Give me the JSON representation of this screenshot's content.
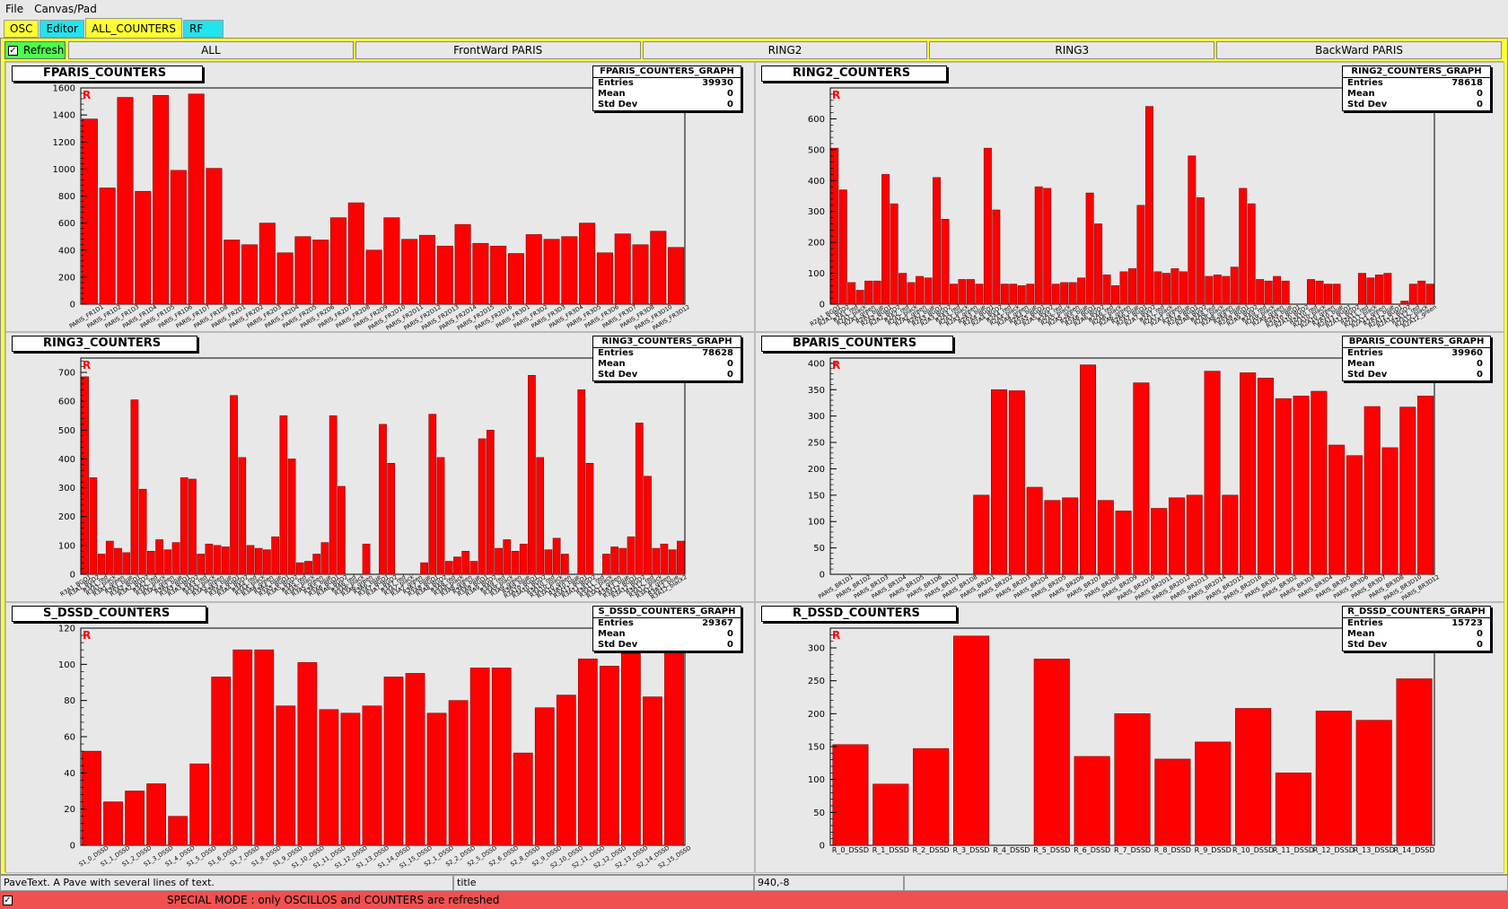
{
  "menubar": {
    "items": [
      "File",
      "Canvas/Pad"
    ]
  },
  "top_tabs": [
    {
      "label": "OSC",
      "style": "yellow"
    },
    {
      "label": "Editor",
      "style": "cyan"
    },
    {
      "label": "ALL_COUNTERS",
      "style": "active"
    },
    {
      "label": "RF",
      "style": "cyan"
    }
  ],
  "toolbar": {
    "refresh_label": "Refresh",
    "refresh_checked": "✓",
    "sub_tabs": [
      "ALL",
      "FrontWard PARIS",
      "RING2",
      "RING3",
      "BackWard PARIS"
    ]
  },
  "stat_labels": {
    "entries": "Entries",
    "mean": "Mean",
    "std": "Std Dev"
  },
  "marker": "R",
  "charts": [
    {
      "title": "FPARIS_COUNTERS",
      "stat_title": "FPARIS_COUNTERS_GRAPH",
      "entries": "39930",
      "mean": "0",
      "std": "0",
      "chart_data": {
        "type": "bar",
        "ylim": [
          0,
          1600
        ],
        "yticks": [
          0,
          200,
          400,
          600,
          800,
          1000,
          1200,
          1400,
          1600
        ],
        "values": [
          1370,
          860,
          1530,
          835,
          1545,
          990,
          1555,
          1005,
          475,
          440,
          600,
          380,
          500,
          475,
          640,
          750,
          400,
          640,
          480,
          510,
          430,
          590,
          450,
          430,
          375,
          515,
          480,
          500,
          600,
          380,
          520,
          440,
          540,
          420
        ],
        "categories": [
          "PARIS_FR1D1",
          "PARIS_FR1D2",
          "PARIS_FR1D3",
          "PARIS_FR1D4",
          "PARIS_FR1D5",
          "PARIS_FR1D6",
          "PARIS_FR1D7",
          "PARIS_FR1D8",
          "PARIS_FR2D1",
          "PARIS_FR2D2",
          "PARIS_FR2D3",
          "PARIS_FR2D4",
          "PARIS_FR2D5",
          "PARIS_FR2D6",
          "PARIS_FR2D7",
          "PARIS_FR2D8",
          "PARIS_FR2D9",
          "PARIS_FR2D10",
          "PARIS_FR2D11",
          "PARIS_FR2D12",
          "PARIS_FR2D13",
          "PARIS_FR2D14",
          "PARIS_FR2D15",
          "PARIS_FR2D16",
          "PARIS_FR3D1",
          "PARIS_FR3D2",
          "PARIS_FR3D3",
          "PARIS_FR3D4",
          "PARIS_FR3D5",
          "PARIS_FR3D6",
          "PARIS_FR3D7",
          "PARIS_FR3D8",
          "PARIS_FR3D10",
          "PARIS_FR3D12"
        ],
        "xlabel": "",
        "ylabel": ""
      }
    },
    {
      "title": "RING2_COUNTERS",
      "stat_title": "RING2_COUNTERS_GRAPH",
      "entries": "78618",
      "mean": "0",
      "std": "0",
      "chart_data": {
        "type": "bar",
        "ylim": [
          0,
          700
        ],
        "yticks": [
          0,
          100,
          200,
          300,
          400,
          500,
          600
        ],
        "values": [
          505,
          370,
          70,
          45,
          75,
          75,
          420,
          325,
          100,
          70,
          90,
          85,
          410,
          275,
          65,
          80,
          80,
          65,
          505,
          305,
          65,
          65,
          60,
          65,
          380,
          375,
          65,
          70,
          70,
          85,
          360,
          260,
          95,
          60,
          105,
          115,
          320,
          640,
          105,
          100,
          115,
          105,
          480,
          345,
          90,
          95,
          90,
          120,
          375,
          325,
          80,
          75,
          90,
          75,
          0,
          0,
          80,
          75,
          65,
          65,
          0,
          0,
          100,
          85,
          95,
          100,
          0,
          10,
          65,
          75,
          65
        ],
        "categories": [
          "R2A1_BGO1",
          "R2A1_BGO2",
          "R2A1_red",
          "R2A1_black",
          "R2A1_green",
          "R2A1_blue",
          "R2A2_BGO1",
          "R2A2_BGO2",
          "R2A2_red",
          "R2A2_black",
          "R2A2_green",
          "R2A2_blue",
          "R2A3_BGO1",
          "R2A3_BGO2",
          "R2A3_red",
          "R2A3_black",
          "R2A3_green",
          "R2A3_blue",
          "R2A4_BGO1",
          "R2A4_BGO2",
          "R2A4_red",
          "R2A4_black",
          "R2A4_green",
          "R2A4_blue",
          "R2A5_BGO1",
          "R2A5_BGO2",
          "R2A5_red",
          "R2A5_black",
          "R2A5_green",
          "R2A5_blue",
          "R2A6_BGO1",
          "R2A6_BGO2",
          "R2A6_red",
          "R2A6_black",
          "R2A6_green",
          "R2A6_blue",
          "R2A7_BGO1",
          "R2A7_BGO2",
          "R2A7_red",
          "R2A7_black",
          "R2A7_green",
          "R2A7_blue",
          "R2A8_BGO1",
          "R2A8_BGO2",
          "R2A8_red",
          "R2A8_black",
          "R2A8_green",
          "R2A8_blue",
          "R2A9_BGO1",
          "R2A9_BGO2",
          "R2A9_red",
          "R2A9_black",
          "R2A9_green",
          "R2A9_blue",
          "R2A10_BGO1",
          "R2A10_BGO2",
          "R2A10_red",
          "R2A10_black",
          "R2A10_green",
          "R2A10_blue",
          "R2A11_BGO1",
          "R2A11_BGO2",
          "R2A11_red",
          "R2A11_black",
          "R2A11_green",
          "R2A11_blue",
          "R2A12_BGO1",
          "R2A12_BGO2",
          "R2A12_red",
          "R2A12_black",
          "R2A12_green"
        ],
        "xlabel": "",
        "ylabel": ""
      }
    },
    {
      "title": "RING3_COUNTERS",
      "stat_title": "RING3_COUNTERS_GRAPH",
      "entries": "78628",
      "mean": "0",
      "std": "0",
      "chart_data": {
        "type": "bar",
        "ylim": [
          0,
          750
        ],
        "yticks": [
          0,
          100,
          200,
          300,
          400,
          500,
          600,
          700
        ],
        "values": [
          685,
          335,
          70,
          115,
          90,
          75,
          605,
          295,
          80,
          120,
          85,
          110,
          335,
          330,
          70,
          105,
          100,
          95,
          620,
          405,
          100,
          90,
          85,
          130,
          550,
          400,
          40,
          45,
          70,
          110,
          550,
          305,
          0,
          0,
          105,
          0,
          520,
          385,
          0,
          0,
          0,
          40,
          555,
          405,
          45,
          60,
          80,
          45,
          470,
          500,
          90,
          120,
          80,
          105,
          690,
          405,
          85,
          125,
          70,
          0,
          640,
          385,
          0,
          70,
          95,
          90,
          130,
          525,
          340,
          90,
          105,
          85,
          115
        ],
        "categories": [
          "R3A1_BGO1",
          "R3A1_BGO2",
          "R3A1_red",
          "R3A1_black",
          "R3A1_green",
          "R3A1_blue",
          "R3A2_BGO1",
          "R3A2_BGO2",
          "R3A2_red",
          "R3A2_black",
          "R3A2_green",
          "R3A2_blue",
          "R3A3_BGO1",
          "R3A3_BGO2",
          "R3A3_red",
          "R3A3_black",
          "R3A3_green",
          "R3A3_blue",
          "R3A4_BGO1",
          "R3A4_BGO2",
          "R3A4_red",
          "R3A4_black",
          "R3A4_green",
          "R3A4_blue",
          "R3A5_BGO1",
          "R3A5_BGO2",
          "R3A5_red",
          "R3A5_black",
          "R3A5_green",
          "R3A5_blue",
          "R3A6_BGO1",
          "R3A6_BGO2",
          "R3A6_red",
          "R3A6_black",
          "R3A6_green",
          "R3A6_blue",
          "R3A7_BGO1",
          "R3A7_BGO2",
          "R3A7_red",
          "R3A7_black",
          "R3A7_green",
          "R3A7_blue",
          "R3A8_BGO1",
          "R3A8_BGO2",
          "R3A8_red",
          "R3A8_black",
          "R3A8_green",
          "R3A8_blue",
          "R3A9_BGO1",
          "R3A9_BGO2",
          "R3A9_red",
          "R3A9_black",
          "R3A9_green",
          "R3A9_blue",
          "R3A10_BGO1",
          "R3A10_BGO2",
          "R3A10_red",
          "R3A10_black",
          "R3A10_green",
          "R3A10_blue",
          "R3A11_BGO1",
          "R3A11_BGO2",
          "R3A11_red",
          "R3A11_black",
          "R3A11_green",
          "R3A11_blue",
          "R3A12_BGO1",
          "R3A12_BGO2",
          "R3A12_red",
          "R3A12_black",
          "R3A12_green",
          "R3A12_blue",
          "R3A12_black2"
        ],
        "xlabel": "",
        "ylabel": ""
      }
    },
    {
      "title": "BPARIS_COUNTERS",
      "stat_title": "BPARIS_COUNTERS_GRAPH",
      "entries": "39960",
      "mean": "0",
      "std": "0",
      "chart_data": {
        "type": "bar",
        "ylim": [
          0,
          410
        ],
        "yticks": [
          0,
          50,
          100,
          150,
          200,
          250,
          300,
          350,
          400
        ],
        "values": [
          0,
          0,
          0,
          0,
          0,
          0,
          0,
          0,
          150,
          350,
          348,
          165,
          140,
          145,
          397,
          140,
          120,
          363,
          125,
          145,
          150,
          385,
          150,
          382,
          372,
          333,
          338,
          347,
          245,
          225,
          318,
          240,
          317,
          338
        ],
        "categories": [
          "PARIS_BR1D1",
          "PARIS_BR1D2",
          "PARIS_BR1D3",
          "PARIS_BR1D4",
          "PARIS_BR1D5",
          "PARIS_BR1D6",
          "PARIS_BR1D7",
          "PARIS_BR1D8",
          "PARIS_BR2D1",
          "PARIS_BR2D2",
          "PARIS_BR2D3",
          "PARIS_BR2D4",
          "PARIS_BR2D5",
          "PARIS_BR2D6",
          "PARIS_BR2D7",
          "PARIS_BR2D8",
          "PARIS_BR2D9",
          "PARIS_BR2D10",
          "PARIS_BR2D11",
          "PARIS_BR2D12",
          "PARIS_BR2D13",
          "PARIS_BR2D14",
          "PARIS_BR2D15",
          "PARIS_BR2D16",
          "PARIS_BR3D1",
          "PARIS_BR3D2",
          "PARIS_BR3D3",
          "PARIS_BR3D4",
          "PARIS_BR3D5",
          "PARIS_BR3D6",
          "PARIS_BR3D7",
          "PARIS_BR3D8",
          "PARIS_BR3D10",
          "PARIS_BR3D12"
        ],
        "xlabel": "",
        "ylabel": ""
      }
    },
    {
      "title": "S_DSSD_COUNTERS",
      "stat_title": "S_DSSD_COUNTERS_GRAPH",
      "entries": "29367",
      "mean": "0",
      "std": "0",
      "chart_data": {
        "type": "bar",
        "ylim": [
          0,
          120
        ],
        "yticks": [
          0,
          20,
          40,
          60,
          80,
          100,
          120
        ],
        "values": [
          52,
          24,
          30,
          34,
          16,
          45,
          93,
          108,
          108,
          77,
          101,
          75,
          73,
          77,
          93,
          95,
          73,
          80,
          98,
          98,
          51,
          76,
          83,
          103,
          99,
          106,
          82,
          110
        ],
        "categories": [
          "S1_0_DSSD",
          "S1_1_DSSD",
          "S1_2_DSSD",
          "S1_3_DSSD",
          "S1_4_DSSD",
          "S1_5_DSSD",
          "S1_6_DSSD",
          "S1_7_DSSD",
          "S1_8_DSSD",
          "S1_9_DSSD",
          "S1_10_DSSD",
          "S1_11_DSSD",
          "S1_12_DSSD",
          "S1_13_DSSD",
          "S1_14_DSSD",
          "S1_15_DSSD",
          "S2_1_DSSD",
          "S2_2_DSSD",
          "S2_5_DSSD",
          "S2_6_DSSD",
          "S2_8_DSSD",
          "S2_9_DSSD",
          "S2_10_DSSD",
          "S2_11_DSSD",
          "S2_12_DSSD",
          "S2_13_DSSD",
          "S2_14_DSSD",
          "S2_15_DSSD"
        ],
        "xlabel": "",
        "ylabel": ""
      }
    },
    {
      "title": "R_DSSD_COUNTERS",
      "stat_title": "R_DSSD_COUNTERS_GRAPH",
      "entries": "15723",
      "mean": "0",
      "std": "0",
      "chart_data": {
        "type": "bar",
        "ylim": [
          0,
          330
        ],
        "yticks": [
          0,
          50,
          100,
          150,
          200,
          250,
          300
        ],
        "values": [
          153,
          93,
          147,
          318,
          0,
          283,
          135,
          200,
          131,
          157,
          208,
          110,
          204,
          190,
          253
        ],
        "categories": [
          "R_0_DSSD",
          "R_1_DSSD",
          "R_2_DSSD",
          "R_3_DSSD",
          "R_4_DSSD",
          "R_5_DSSD",
          "R_6_DSSD",
          "R_7_DSSD",
          "R_8_DSSD",
          "R_9_DSSD",
          "R_10_DSSD",
          "R_11_DSSD",
          "R_12_DSSD",
          "R_13_DSSD",
          "R_14_DSSD"
        ],
        "xlabel": "",
        "ylabel": ""
      }
    }
  ],
  "statusbar": {
    "cells": [
      "PaveText. A Pave with several lines of text.",
      "title",
      "940,-8",
      ""
    ]
  },
  "special": {
    "checked": "✓",
    "text": "SPECIAL MODE : only OSCILLOS and COUNTERS are refreshed"
  },
  "colors": {
    "bar": "#ff0000",
    "bar_edge": "#800000",
    "frame": "#ffff33",
    "refresh": "#4cff4c",
    "special": "#f05050"
  }
}
